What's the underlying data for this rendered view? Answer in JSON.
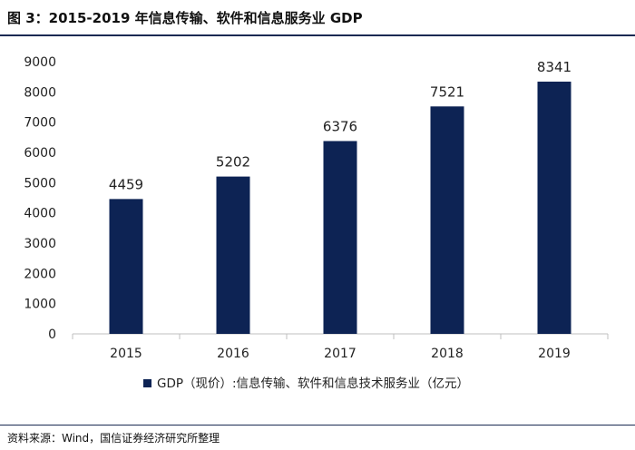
{
  "header": {
    "title": "图 3：2015-2019 年信息传输、软件和信息服务业 GDP"
  },
  "footer": {
    "source": "资料来源：Wind，国信证券经济研究所整理"
  },
  "colors": {
    "bar": "#0d2354",
    "axis": "#bfbfbf",
    "text": "#222222"
  },
  "chart_data": {
    "type": "bar",
    "title": "",
    "xlabel": "",
    "ylabel": "",
    "categories": [
      "2015",
      "2016",
      "2017",
      "2018",
      "2019"
    ],
    "series": [
      {
        "name": "GDP（现价）:信息传输、软件和信息技术服务业（亿元）",
        "values": [
          4459,
          5202,
          6376,
          7521,
          8341
        ]
      }
    ],
    "ylim": [
      0,
      9000
    ],
    "yticks": [
      0,
      1000,
      2000,
      3000,
      4000,
      5000,
      6000,
      7000,
      8000,
      9000
    ],
    "grid": false,
    "legend": "bottom-center",
    "data_labels": true
  }
}
